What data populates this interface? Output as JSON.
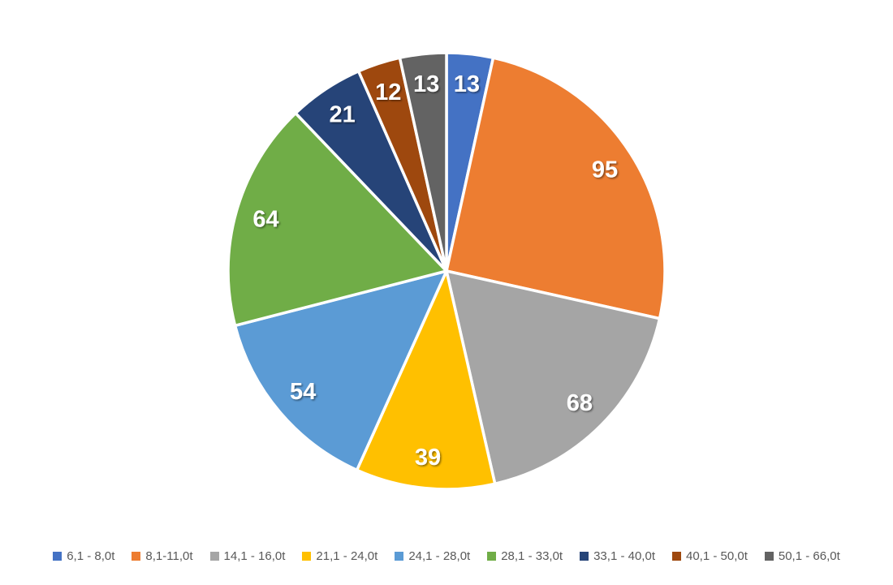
{
  "chart_data": {
    "type": "pie",
    "title": "",
    "categories": [
      "6,1 - 8,0t",
      "8,1-11,0t",
      "14,1 - 16,0t",
      "21,1 - 24,0t",
      "24,1 - 28,0t",
      "28,1 - 33,0t",
      "33,1 - 40,0t",
      "40,1 - 50,0t",
      "50,1 - 66,0t"
    ],
    "values": [
      13,
      95,
      68,
      39,
      54,
      64,
      21,
      12,
      13
    ],
    "colors": [
      "#4472C4",
      "#ED7D31",
      "#A5A5A5",
      "#FFC000",
      "#5B9BD5",
      "#70AD47",
      "#264478",
      "#9E480E",
      "#636363"
    ],
    "start_angle_deg": 0,
    "direction": "clockwise",
    "slice_border_color": "#FFFFFF",
    "data_labels": {
      "show": true,
      "color": "#FFFFFF",
      "position_radius_factor": 0.86
    },
    "legend_position": "bottom",
    "legend_text_color": "#595959",
    "background_color": "#FFFFFF"
  }
}
